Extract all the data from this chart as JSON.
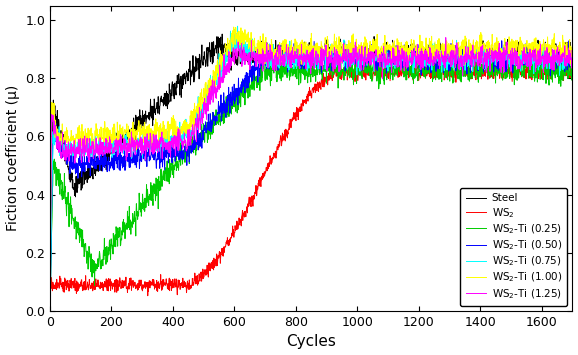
{
  "xlabel": "Cycles",
  "ylabel": "Fiction coefficient (μ)",
  "xlim": [
    0,
    1700
  ],
  "ylim": [
    0.0,
    1.05
  ],
  "yticks": [
    0.0,
    0.2,
    0.4,
    0.6,
    0.8,
    1.0
  ],
  "xticks": [
    0,
    200,
    400,
    600,
    800,
    1000,
    1200,
    1400,
    1600
  ],
  "figsize": [
    5.78,
    3.55
  ],
  "dpi": 100,
  "line_colors": {
    "steel": "black",
    "ws2": "red",
    "ws2_ti_025": "#00cc00",
    "ws2_ti_050": "blue",
    "ws2_ti_075": "cyan",
    "ws2_ti_100": "yellow",
    "ws2_ti_125": "magenta"
  }
}
